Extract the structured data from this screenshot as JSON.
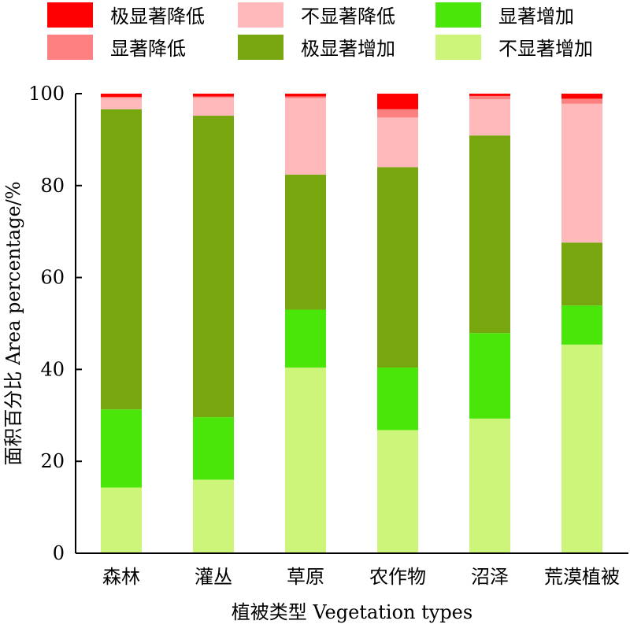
{
  "chart_data": {
    "type": "bar",
    "stacked": true,
    "xlabel": "植被类型 Vegetation types",
    "ylabel": "面积百分比 Area percentage/%",
    "ylim": [
      0,
      100
    ],
    "yticks": [
      0,
      20,
      40,
      60,
      80,
      100
    ],
    "legend_position": "top",
    "categories": [
      "森林",
      "灌丛",
      "草原",
      "农作物",
      "沼泽",
      "荒漠植被"
    ],
    "series": [
      {
        "name": "不显著增加",
        "color": "#ccf57a",
        "values": [
          14.3,
          16.0,
          40.4,
          26.8,
          29.3,
          45.4
        ]
      },
      {
        "name": "显著增加",
        "color": "#4ae60a",
        "values": [
          17.0,
          13.6,
          12.6,
          13.6,
          18.6,
          8.5
        ]
      },
      {
        "name": "极显著增加",
        "color": "#77a60e",
        "values": [
          65.3,
          65.6,
          29.4,
          43.6,
          43.0,
          13.7
        ]
      },
      {
        "name": "不显著降低",
        "color": "#ffb9bb",
        "values": [
          2.4,
          3.9,
          16.6,
          10.8,
          7.9,
          30.2
        ]
      },
      {
        "name": "显著降低",
        "color": "#fd8080",
        "values": [
          0.3,
          0.3,
          0.4,
          1.8,
          0.7,
          1.1
        ]
      },
      {
        "name": "极显著降低",
        "color": "#ff0000",
        "values": [
          0.7,
          0.6,
          0.6,
          3.4,
          0.5,
          1.1
        ]
      }
    ],
    "legend_order": [
      "极显著降低",
      "不显著降低",
      "显著增加",
      "显著降低",
      "极显著增加",
      "不显著增加"
    ]
  }
}
